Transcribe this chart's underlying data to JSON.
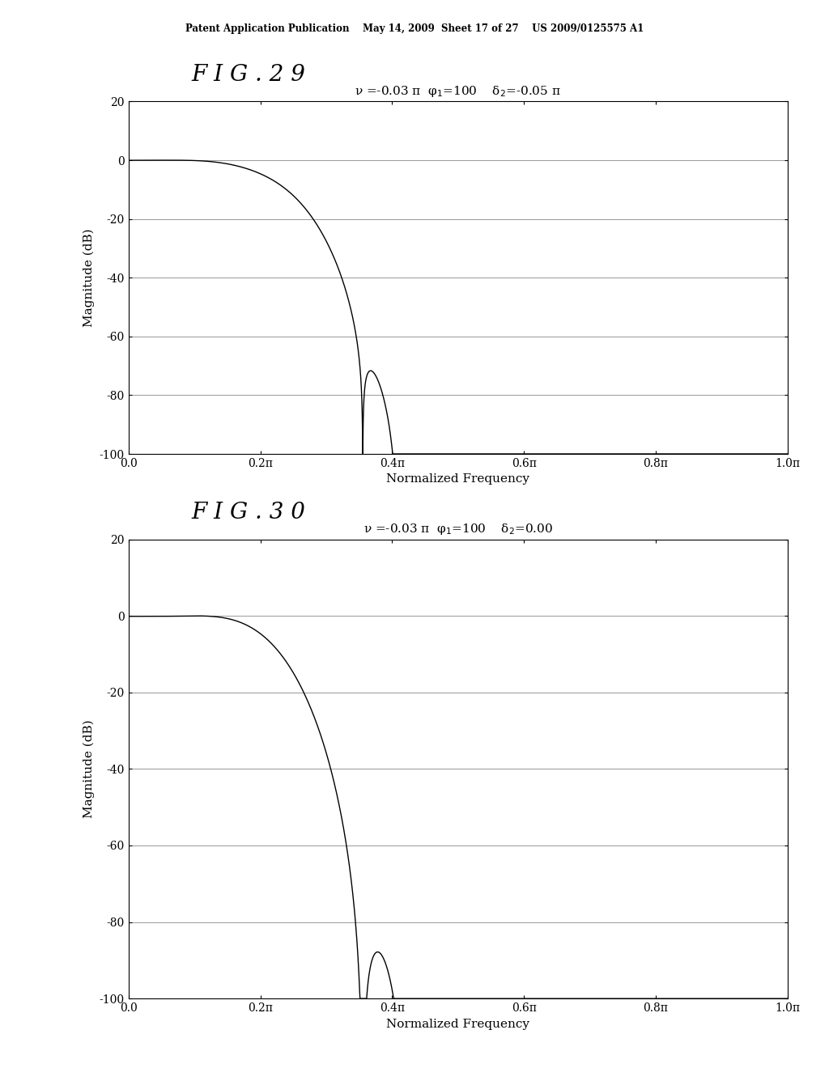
{
  "fig_width": 10.24,
  "fig_height": 13.2,
  "background_color": "#ffffff",
  "header_text": "Patent Application Publication    May 14, 2009  Sheet 17 of 27    US 2009/0125575 A1",
  "plots": [
    {
      "fig_label": "F I G . 2 9",
      "title1": "ν =-0.03 π  φ",
      "title2": "=100    δ",
      "title3": "=-0.05 π",
      "nu": -0.03,
      "phi1": 100,
      "delta2": -0.05,
      "ylabel": "Magnitude (dB)",
      "xlabel": "Normalized Frequency",
      "ylim": [
        -100,
        20
      ],
      "yticks": [
        -100,
        -80,
        -60,
        -40,
        -20,
        0,
        20
      ],
      "xlim": [
        0.0,
        1.0
      ],
      "xticks": [
        0.0,
        0.2,
        0.4,
        0.6,
        0.8,
        1.0
      ],
      "xticklabels": [
        "0.0",
        "0.2π",
        "0.4π",
        "0.6π",
        "0.8π",
        "1.0π"
      ]
    },
    {
      "fig_label": "F I G . 3 0",
      "title1": "ν =-0.03 π  φ",
      "title2": "=100    δ",
      "title3": "=0.00",
      "nu": -0.03,
      "phi1": 100,
      "delta2": 0.0,
      "ylabel": "Magnitude (dB)",
      "xlabel": "Normalized Frequency",
      "ylim": [
        -100,
        20
      ],
      "yticks": [
        -100,
        -80,
        -60,
        -40,
        -20,
        0,
        20
      ],
      "xlim": [
        0.0,
        1.0
      ],
      "xticks": [
        0.0,
        0.2,
        0.4,
        0.6,
        0.8,
        1.0
      ],
      "xticklabels": [
        "0.0",
        "0.2π",
        "0.4π",
        "0.6π",
        "0.8π",
        "1.0π"
      ]
    }
  ]
}
